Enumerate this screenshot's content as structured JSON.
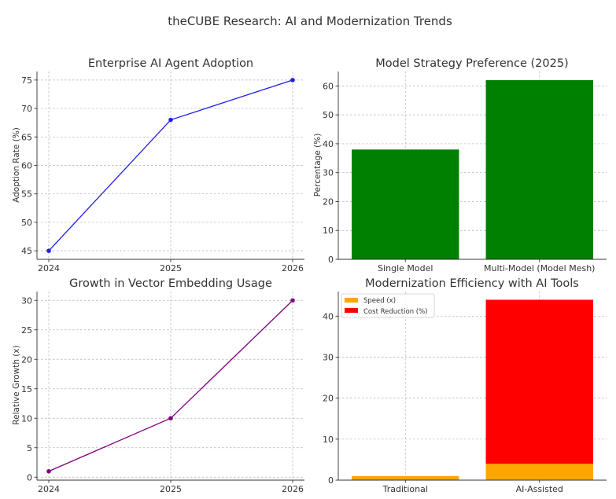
{
  "figure": {
    "suptitle": "theCUBE Research: AI and Modernization Trends"
  },
  "chart_data": [
    {
      "type": "line",
      "title": "Enterprise AI Agent Adoption",
      "xlabel": "",
      "ylabel": "Adoption Rate (%)",
      "x": [
        "2024",
        "2025",
        "2026"
      ],
      "series": [
        {
          "values": [
            45,
            68,
            75
          ],
          "color": "#1f1fe6"
        }
      ],
      "ylim": [
        43.5,
        76.5
      ],
      "yticks": [
        45,
        50,
        55,
        60,
        65,
        70,
        75
      ],
      "grid": true
    },
    {
      "type": "bar",
      "title": "Model Strategy Preference (2025)",
      "xlabel": "",
      "ylabel": "Percentage (%)",
      "categories": [
        "Single Model",
        "Multi-Model (Model Mesh)"
      ],
      "series": [
        {
          "values": [
            38,
            62
          ],
          "color": "#008000"
        }
      ],
      "ylim": [
        0,
        65
      ],
      "yticks": [
        0,
        10,
        20,
        30,
        40,
        50,
        60
      ],
      "grid": true
    },
    {
      "type": "line",
      "title": "Growth in Vector Embedding Usage",
      "xlabel": "",
      "ylabel": "Relative Growth (x)",
      "x": [
        "2024",
        "2025",
        "2026"
      ],
      "series": [
        {
          "values": [
            1,
            10,
            30
          ],
          "color": "#800080"
        }
      ],
      "ylim": [
        -0.5,
        31.5
      ],
      "yticks": [
        0,
        5,
        10,
        15,
        20,
        25,
        30
      ],
      "grid": true
    },
    {
      "type": "bar",
      "stacked": true,
      "title": "Modernization Efficiency with AI Tools",
      "xlabel": "",
      "ylabel": "",
      "categories": [
        "Traditional",
        "AI-Assisted"
      ],
      "series": [
        {
          "name": "Speed (x)",
          "values": [
            1,
            4
          ],
          "color": "#ffa500"
        },
        {
          "name": "Cost Reduction (%)",
          "values": [
            0,
            40
          ],
          "color": "#ff0000"
        }
      ],
      "ylim": [
        0,
        46
      ],
      "yticks": [
        0,
        10,
        20,
        30,
        40
      ],
      "legend": "top-left",
      "grid": true
    }
  ]
}
